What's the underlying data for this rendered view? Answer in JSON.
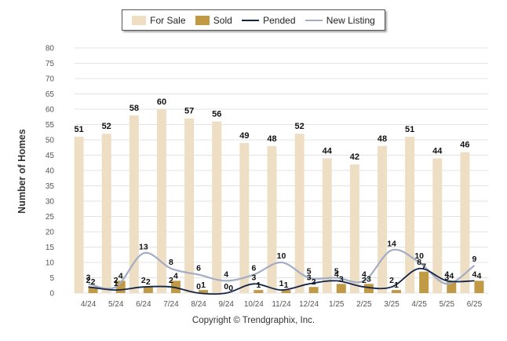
{
  "legend": {
    "for_sale": "For Sale",
    "sold": "Sold",
    "pended": "Pended",
    "new_listing": "New Listing"
  },
  "y_axis_label": "Number of Homes",
  "copyright": "Copyright © Trendgraphix, Inc.",
  "colors": {
    "for_sale": "#eedfc4",
    "sold": "#c19a45",
    "pended": "#14244a",
    "new_listing": "#a3adc3",
    "grid": "#e3e3e3",
    "axis_text": "#555555"
  },
  "chart_data": {
    "type": "bar",
    "categories": [
      "4/24",
      "5/24",
      "6/24",
      "7/24",
      "8/24",
      "9/24",
      "10/24",
      "11/24",
      "12/24",
      "1/25",
      "2/25",
      "3/25",
      "4/25",
      "5/25",
      "6/25"
    ],
    "ylabel": "Number of Homes",
    "ylim": [
      0,
      80
    ],
    "yticks": [
      0,
      5,
      10,
      15,
      20,
      25,
      30,
      35,
      40,
      45,
      50,
      55,
      60,
      65,
      70,
      75,
      80
    ],
    "grid": true,
    "legend_position": "top-center",
    "series": [
      {
        "name": "For Sale",
        "kind": "bar",
        "values": [
          51,
          52,
          58,
          60,
          57,
          56,
          49,
          48,
          52,
          44,
          42,
          48,
          51,
          44,
          46
        ]
      },
      {
        "name": "Sold",
        "kind": "bar",
        "values": [
          2,
          4,
          2,
          4,
          1,
          0,
          1,
          1,
          2,
          3,
          3,
          1,
          7,
          4,
          4
        ]
      },
      {
        "name": "Pended",
        "kind": "line",
        "values": [
          2,
          1,
          2,
          2,
          0,
          0,
          3,
          1,
          3,
          4,
          2,
          2,
          8,
          4,
          4
        ]
      },
      {
        "name": "New Listing",
        "kind": "line",
        "values": [
          3,
          2,
          13,
          8,
          6,
          4,
          6,
          10,
          5,
          5,
          4,
          14,
          10,
          3,
          9
        ]
      }
    ]
  }
}
